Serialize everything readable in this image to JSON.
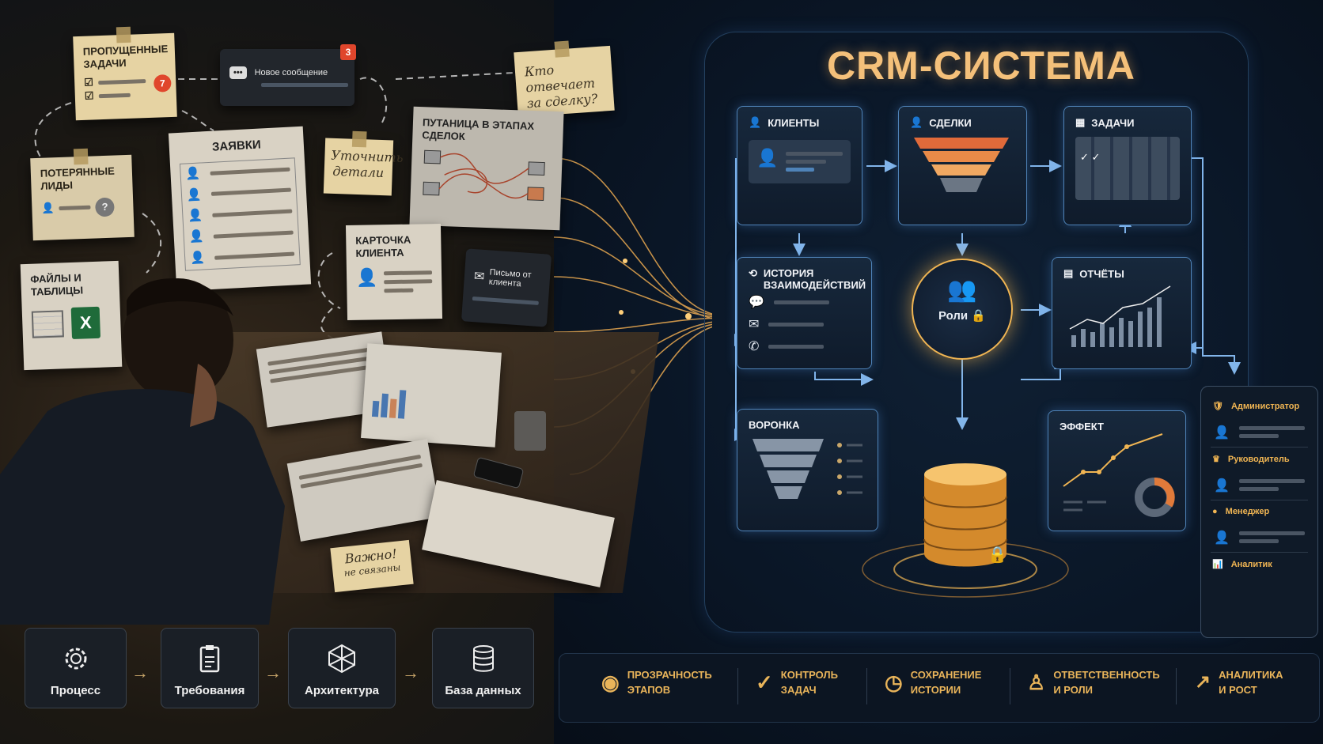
{
  "left_scene": {
    "notes": {
      "missed_tasks": {
        "title": "Пропущенные задачи",
        "badge": "7"
      },
      "new_message": {
        "label": "Новое сообщение",
        "badge": "3"
      },
      "who_owns": {
        "text": "Кто отвечает за сделку?"
      },
      "requests": {
        "title": "Заявки"
      },
      "clarify": {
        "text": "Уточнить детали"
      },
      "confusion": {
        "title": "Путаница в этапах сделок"
      },
      "lost_leads": {
        "title": "Потерянные лиды",
        "mark": "?"
      },
      "client_card": {
        "title": "Карточка клиента"
      },
      "email": {
        "label": "Письмо от клиента"
      },
      "files": {
        "title": "Файлы и таблицы",
        "excel": "X"
      },
      "important": {
        "line1": "Важно!",
        "line2": "не связаны"
      }
    }
  },
  "steps": [
    {
      "label": "Процесс",
      "icon": "gear-icon"
    },
    {
      "label": "Требования",
      "icon": "clipboard-icon"
    },
    {
      "label": "Архитектура",
      "icon": "cube-network-icon"
    },
    {
      "label": "База данных",
      "icon": "database-icon"
    }
  ],
  "crm": {
    "title": "CRM-СИСТЕМА",
    "modules": {
      "clients": "Клиенты",
      "deals": "Сделки",
      "tasks": "Задачи",
      "history": "История взаимодействий",
      "reports": "Отчёты",
      "funnel": "Воронка",
      "effect": "Эффект",
      "roles": "Роли"
    },
    "roles_panel": [
      "Администратор",
      "Руководитель",
      "Менеджер",
      "Аналитик"
    ]
  },
  "features": [
    {
      "line1": "Прозрачность",
      "line2": "этапов",
      "icon": "eye-icon"
    },
    {
      "line1": "Контроль",
      "line2": "задач",
      "icon": "check-circle-icon"
    },
    {
      "line1": "Сохранение",
      "line2": "истории",
      "icon": "clock-icon"
    },
    {
      "line1": "Ответственность",
      "line2": "и роли",
      "icon": "person-icon"
    },
    {
      "line1": "Аналитика",
      "line2": "и рост",
      "icon": "growth-chart-icon"
    }
  ],
  "colors": {
    "gold": "#f0b553",
    "accent_blue": "#4f83b8",
    "background": "#08111d",
    "alert": "#e0462c"
  }
}
